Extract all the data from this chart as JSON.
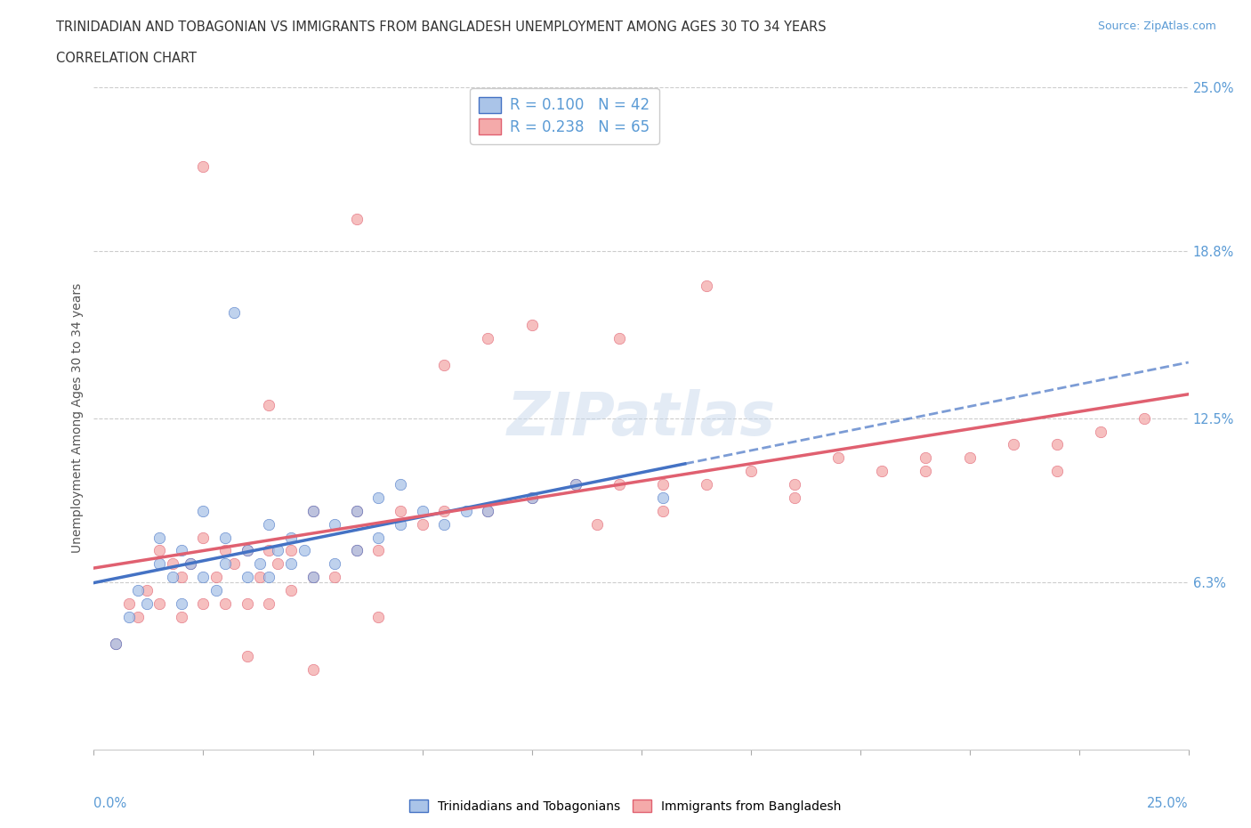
{
  "title_line1": "TRINIDADIAN AND TOBAGONIAN VS IMMIGRANTS FROM BANGLADESH UNEMPLOYMENT AMONG AGES 30 TO 34 YEARS",
  "title_line2": "CORRELATION CHART",
  "source_text": "Source: ZipAtlas.com",
  "ylabel": "Unemployment Among Ages 30 to 34 years",
  "yticks": [
    0.0,
    0.063,
    0.125,
    0.188,
    0.25
  ],
  "ytick_labels": [
    "",
    "6.3%",
    "12.5%",
    "18.8%",
    "25.0%"
  ],
  "xmin": 0.0,
  "xmax": 0.25,
  "ymin": 0.0,
  "ymax": 0.25,
  "legend_r1": "R = 0.100",
  "legend_n1": "N = 42",
  "legend_r2": "R = 0.238",
  "legend_n2": "N = 65",
  "color_blue": "#aac4e8",
  "color_pink": "#f4aaaa",
  "color_blue_dark": "#4472c4",
  "color_pink_dark": "#e06070",
  "blue_scatter_x": [
    0.005,
    0.008,
    0.01,
    0.012,
    0.015,
    0.015,
    0.018,
    0.02,
    0.02,
    0.022,
    0.025,
    0.025,
    0.028,
    0.03,
    0.03,
    0.032,
    0.035,
    0.035,
    0.038,
    0.04,
    0.04,
    0.042,
    0.045,
    0.045,
    0.048,
    0.05,
    0.05,
    0.055,
    0.055,
    0.06,
    0.06,
    0.065,
    0.065,
    0.07,
    0.07,
    0.075,
    0.08,
    0.085,
    0.09,
    0.1,
    0.11,
    0.13
  ],
  "blue_scatter_y": [
    0.04,
    0.05,
    0.06,
    0.055,
    0.07,
    0.08,
    0.065,
    0.055,
    0.075,
    0.07,
    0.065,
    0.09,
    0.06,
    0.07,
    0.08,
    0.165,
    0.065,
    0.075,
    0.07,
    0.065,
    0.085,
    0.075,
    0.07,
    0.08,
    0.075,
    0.065,
    0.09,
    0.07,
    0.085,
    0.075,
    0.09,
    0.08,
    0.095,
    0.085,
    0.1,
    0.09,
    0.085,
    0.09,
    0.09,
    0.095,
    0.1,
    0.095
  ],
  "pink_scatter_x": [
    0.005,
    0.008,
    0.01,
    0.012,
    0.015,
    0.015,
    0.018,
    0.02,
    0.02,
    0.022,
    0.025,
    0.025,
    0.028,
    0.03,
    0.03,
    0.032,
    0.035,
    0.035,
    0.038,
    0.04,
    0.04,
    0.042,
    0.045,
    0.045,
    0.05,
    0.05,
    0.055,
    0.06,
    0.06,
    0.065,
    0.07,
    0.075,
    0.08,
    0.09,
    0.1,
    0.11,
    0.115,
    0.12,
    0.13,
    0.14,
    0.15,
    0.16,
    0.17,
    0.18,
    0.19,
    0.2,
    0.21,
    0.22,
    0.23,
    0.24,
    0.025,
    0.04,
    0.06,
    0.08,
    0.09,
    0.1,
    0.12,
    0.14,
    0.22,
    0.19,
    0.16,
    0.13,
    0.065,
    0.035,
    0.05
  ],
  "pink_scatter_y": [
    0.04,
    0.055,
    0.05,
    0.06,
    0.055,
    0.075,
    0.07,
    0.05,
    0.065,
    0.07,
    0.055,
    0.08,
    0.065,
    0.055,
    0.075,
    0.07,
    0.055,
    0.075,
    0.065,
    0.055,
    0.075,
    0.07,
    0.06,
    0.075,
    0.065,
    0.09,
    0.065,
    0.075,
    0.09,
    0.075,
    0.09,
    0.085,
    0.09,
    0.09,
    0.095,
    0.1,
    0.085,
    0.1,
    0.1,
    0.1,
    0.105,
    0.1,
    0.11,
    0.105,
    0.11,
    0.11,
    0.115,
    0.115,
    0.12,
    0.125,
    0.22,
    0.13,
    0.2,
    0.145,
    0.155,
    0.16,
    0.155,
    0.175,
    0.105,
    0.105,
    0.095,
    0.09,
    0.05,
    0.035,
    0.03
  ]
}
